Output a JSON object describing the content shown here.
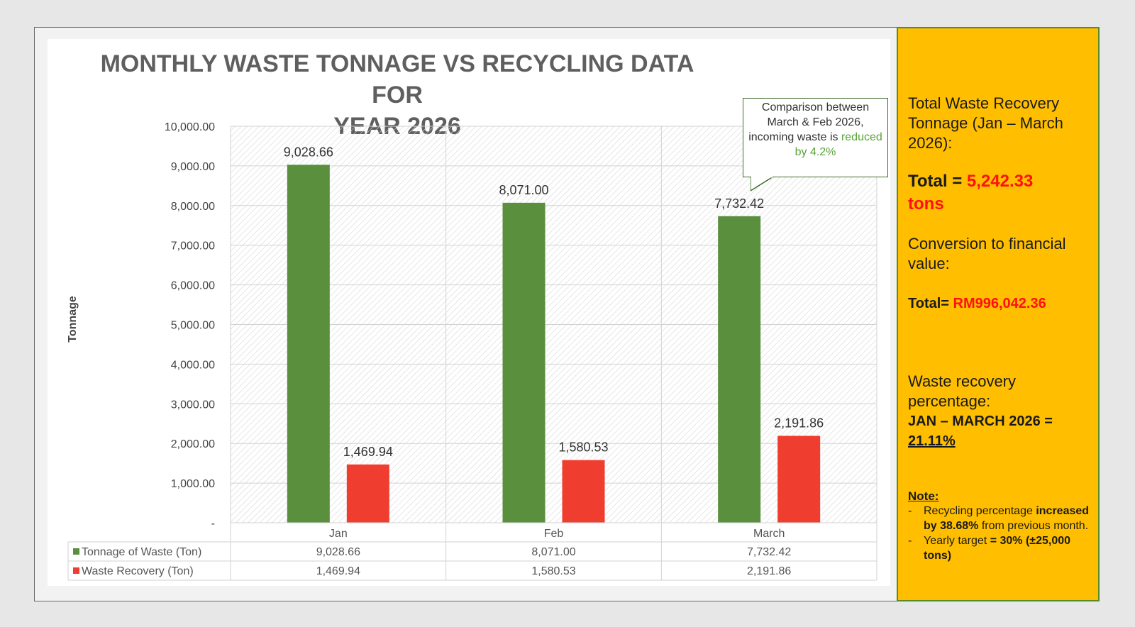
{
  "chart_data": {
    "type": "bar",
    "title": "MONTHLY WASTE TONNAGE VS RECYCLING DATA FOR YEAR 2026",
    "title_lines": [
      "MONTHLY WASTE TONNAGE VS RECYCLING DATA FOR",
      "YEAR 2026"
    ],
    "ylabel": "Tonnage",
    "xlabel": "",
    "categories": [
      "Jan",
      "Feb",
      "March"
    ],
    "ylim": [
      0,
      10000
    ],
    "yticks": [
      "-",
      "1,000.00",
      "2,000.00",
      "3,000.00",
      "4,000.00",
      "5,000.00",
      "6,000.00",
      "7,000.00",
      "8,000.00",
      "9,000.00",
      "10,000.00"
    ],
    "grid": true,
    "legend": "data-table",
    "series": [
      {
        "name": "Tonnage of Waste (Ton)",
        "color": "#5a8f3e",
        "values": [
          9028.66,
          8071.0,
          7732.42
        ],
        "labels": [
          "9,028.66",
          "8,071.00",
          "7,732.42"
        ]
      },
      {
        "name": "Waste Recovery (Ton)",
        "color": "#ef3e2f",
        "values": [
          1469.94,
          1580.53,
          2191.86
        ],
        "labels": [
          "1,469.94",
          "1,580.53",
          "2,191.86"
        ]
      }
    ],
    "annotation": {
      "text_prefix": "Comparison between March & Feb 2026, incoming waste is ",
      "highlight": "reduced by 4.2%",
      "highlight_color": "#5aa33a"
    }
  },
  "summary": {
    "recovery_heading": "Total Waste Recovery Tonnage (Jan – March 2026):",
    "total_label": "Total = ",
    "total_value": "5,242.33",
    "total_unit": "tons",
    "conversion_heading": "Conversion to financial value:",
    "financial_label": "Total=",
    "financial_value": "RM996,042.36",
    "percentage_heading": "Waste recovery percentage:",
    "period_label": "JAN – MARCH 2026 =",
    "percentage_value": "21.11%",
    "note_title": "Note:",
    "note1_pre": "Recycling percentage",
    "note1_bold": "increased by 38.68%",
    "note1_post": "from previous month.",
    "note2_pre": "Yearly target",
    "note2_bold": "= 30% (±25,000 tons)",
    "accent_red": "#ff1010"
  }
}
